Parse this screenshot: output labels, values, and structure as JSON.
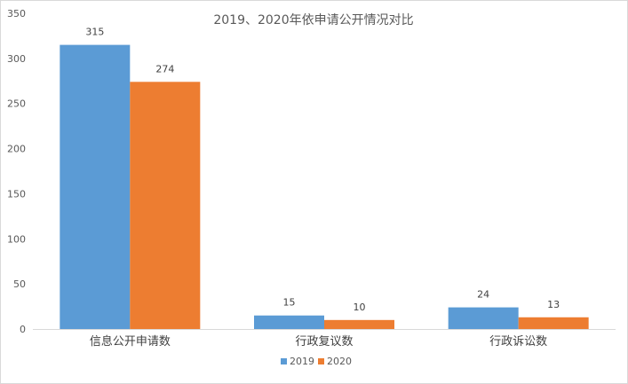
{
  "chart_data": {
    "type": "bar",
    "title": "2019、2020年依申请公开情况对比",
    "categories": [
      "信息公开申请数",
      "行政复议数",
      "行政诉讼数"
    ],
    "series": [
      {
        "name": "2019",
        "values": [
          315,
          15,
          24
        ],
        "color": "#5b9bd5"
      },
      {
        "name": "2020",
        "values": [
          274,
          10,
          13
        ],
        "color": "#ed7d31"
      }
    ],
    "ylim": [
      0,
      350
    ],
    "yticks": [
      0,
      50,
      100,
      150,
      200,
      250,
      300,
      350
    ],
    "grid": false,
    "legend": "bottom-center",
    "xlabel": "",
    "ylabel": ""
  }
}
